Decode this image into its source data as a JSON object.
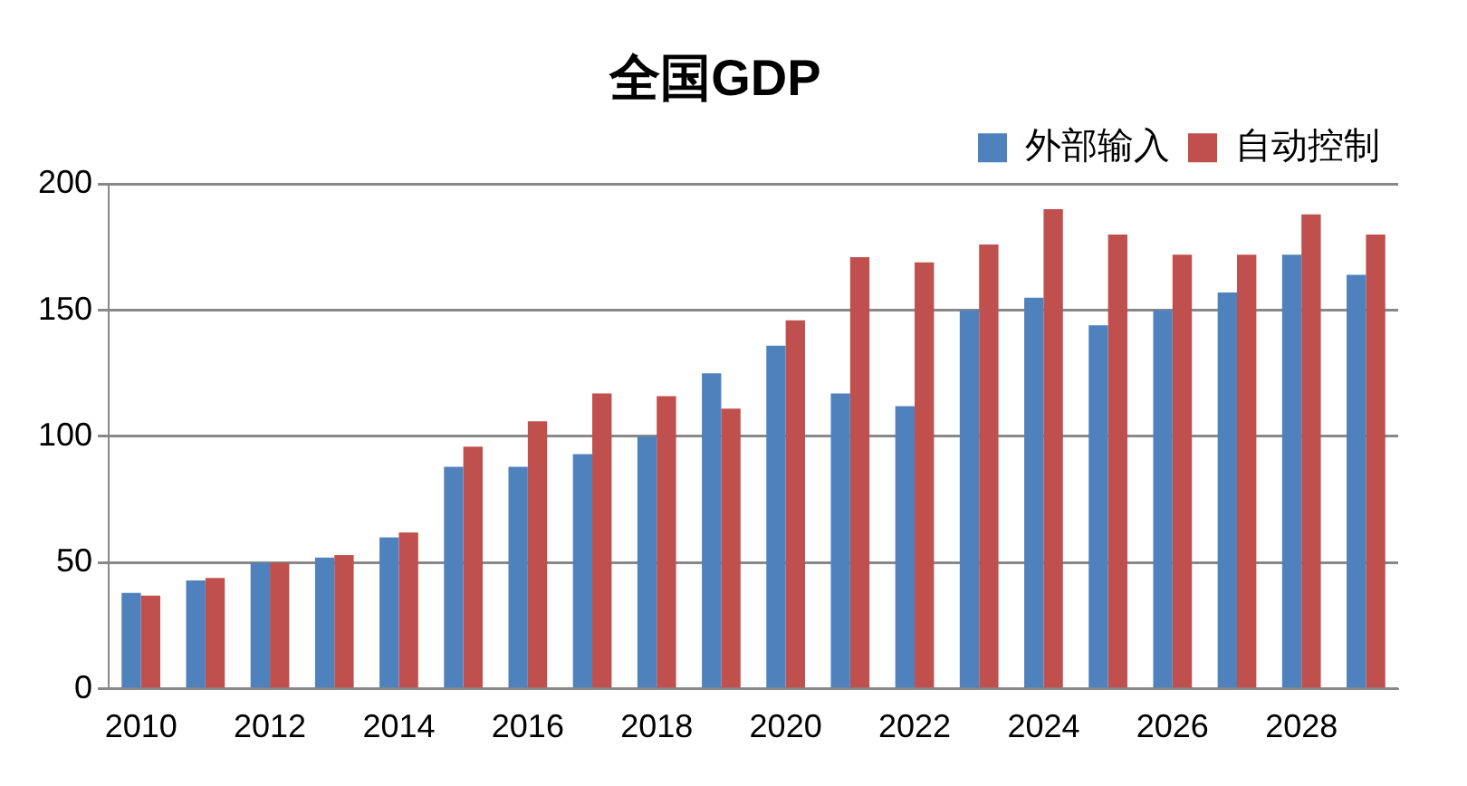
{
  "chart_data": {
    "type": "bar",
    "title": "全国GDP",
    "categories": [
      "2010",
      null,
      "2012",
      null,
      "2014",
      null,
      "2016",
      null,
      "2018",
      null,
      "2020",
      null,
      "2022",
      null,
      "2024",
      null,
      "2026",
      null,
      "2028",
      null
    ],
    "series": [
      {
        "name": "外部输入",
        "color": "#4f81bd",
        "values": [
          38,
          43,
          50,
          52,
          60,
          88,
          88,
          93,
          100,
          125,
          136,
          117,
          112,
          150,
          155,
          144,
          150,
          157,
          172,
          164
        ]
      },
      {
        "name": "自动控制",
        "color": "#c0504d",
        "values": [
          37,
          44,
          50,
          53,
          62,
          96,
          106,
          117,
          116,
          111,
          146,
          171,
          169,
          176,
          190,
          180,
          172,
          172,
          188,
          180
        ]
      }
    ],
    "ylim": [
      0,
      200
    ],
    "yticks": [
      0,
      50,
      100,
      150,
      200
    ],
    "grid": "y",
    "legend": "top right"
  }
}
